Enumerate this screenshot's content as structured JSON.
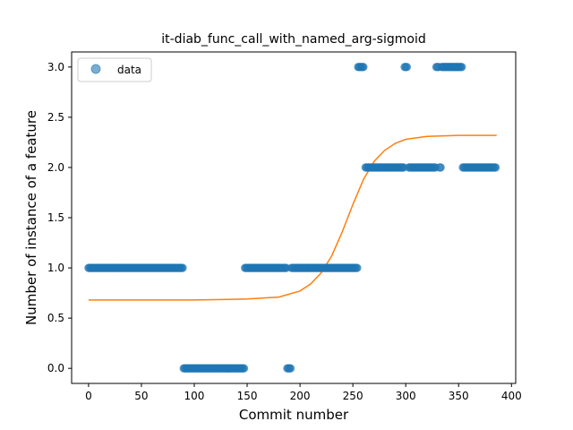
{
  "chart_data": {
    "type": "scatter",
    "title": "it-diab_func_call_with_named_arg-sigmoid",
    "xlabel": "Commit number",
    "ylabel": "Number of instance of a feature",
    "xlim": [
      -16,
      404
    ],
    "ylim": [
      -0.15,
      3.15
    ],
    "xticks": [
      0,
      50,
      100,
      150,
      200,
      250,
      300,
      350,
      400
    ],
    "xtick_labels": [
      "0",
      "50",
      "100",
      "150",
      "200",
      "250",
      "300",
      "350",
      "400"
    ],
    "yticks": [
      0.0,
      0.5,
      1.0,
      1.5,
      2.0,
      2.5,
      3.0
    ],
    "ytick_labels": [
      "0.0",
      "0.5",
      "1.0",
      "1.5",
      "2.0",
      "2.5",
      "3.0"
    ],
    "grid": false,
    "legend": {
      "placement": "top-left",
      "entries": [
        {
          "label": "data",
          "marker": "circle",
          "color": "#1f77b4"
        }
      ]
    },
    "scatter_segments": [
      {
        "x_start": 0,
        "x_end": 90,
        "step": 1,
        "y": 1
      },
      {
        "x_start": 90,
        "x_end": 148,
        "step": 1,
        "y": 0
      },
      {
        "x_start": 148,
        "x_end": 188,
        "step": 1,
        "y": 1
      },
      {
        "x_start": 188,
        "x_end": 192,
        "step": 1,
        "y": 0
      },
      {
        "x_start": 192,
        "x_end": 255,
        "step": 1,
        "y": 1
      },
      {
        "x_start": 255,
        "x_end": 261,
        "step": 1,
        "y": 3
      },
      {
        "x_start": 262,
        "x_end": 299,
        "step": 1,
        "y": 2
      },
      {
        "x_start": 299,
        "x_end": 302,
        "step": 1,
        "y": 3
      },
      {
        "x_start": 303,
        "x_end": 329,
        "step": 1,
        "y": 2
      },
      {
        "x_start": 329,
        "x_end": 332,
        "step": 1,
        "y": 3
      },
      {
        "x_start": 332,
        "x_end": 334,
        "step": 1,
        "y": 2
      },
      {
        "x_start": 334,
        "x_end": 354,
        "step": 1,
        "y": 3
      },
      {
        "x_start": 354,
        "x_end": 386,
        "step": 1,
        "y": 2
      }
    ],
    "series": [
      {
        "name": "data",
        "type": "scatter",
        "color": "#1f77b4"
      },
      {
        "type": "line",
        "color": "#ff7f0e",
        "x": [
          0,
          100,
          150,
          180,
          200,
          210,
          220,
          230,
          240,
          250,
          260,
          270,
          280,
          290,
          300,
          320,
          350,
          386
        ],
        "y": [
          0.68,
          0.68,
          0.69,
          0.71,
          0.77,
          0.84,
          0.95,
          1.12,
          1.36,
          1.63,
          1.88,
          2.06,
          2.17,
          2.24,
          2.28,
          2.31,
          2.32,
          2.32
        ]
      }
    ]
  }
}
